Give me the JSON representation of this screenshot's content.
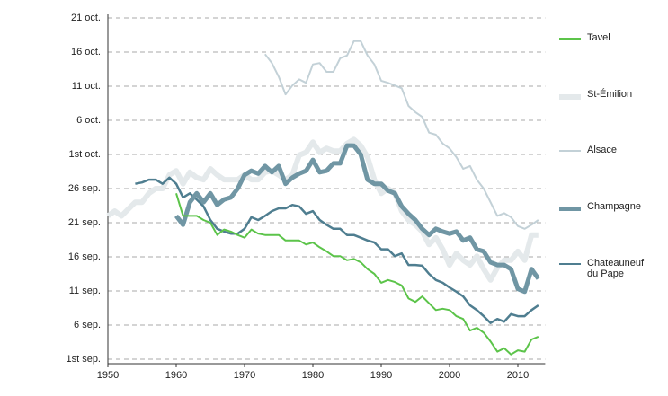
{
  "chart_data": {
    "type": "line",
    "x": [
      1950,
      1951,
      1952,
      1953,
      1954,
      1955,
      1956,
      1957,
      1958,
      1959,
      1960,
      1961,
      1962,
      1963,
      1964,
      1965,
      1966,
      1967,
      1968,
      1969,
      1970,
      1971,
      1972,
      1973,
      1974,
      1975,
      1976,
      1977,
      1978,
      1979,
      1980,
      1981,
      1982,
      1983,
      1984,
      1985,
      1986,
      1987,
      1988,
      1989,
      1990,
      1991,
      1992,
      1993,
      1994,
      1995,
      1996,
      1997,
      1998,
      1999,
      2000,
      2001,
      2002,
      2003,
      2004,
      2005,
      2006,
      2007,
      2008,
      2009,
      2010,
      2011,
      2012,
      2013
    ],
    "xlim": [
      1950,
      2014
    ],
    "xticks": [
      1950,
      1960,
      1970,
      1980,
      1990,
      2000,
      2010
    ],
    "ylim": [
      1,
      51
    ],
    "yticks": [
      {
        "value": 51,
        "label": "21 oct."
      },
      {
        "value": 46,
        "label": "16 oct."
      },
      {
        "value": 41,
        "label": "11 oct."
      },
      {
        "value": 36,
        "label": "6 oct."
      },
      {
        "value": 31,
        "label": "1st oct."
      },
      {
        "value": 26,
        "label": "26 sep."
      },
      {
        "value": 21,
        "label": "21 sep."
      },
      {
        "value": 16,
        "label": "16 sep."
      },
      {
        "value": 11,
        "label": "11 sep."
      },
      {
        "value": 6,
        "label": "6 sep."
      },
      {
        "value": 1,
        "label": "1st sep."
      }
    ],
    "grid": true,
    "series": [
      {
        "name": "St-Émilion",
        "color": "#e4e9eb",
        "values": [
          22,
          22.7,
          22,
          23,
          24,
          24,
          25.3,
          26,
          26,
          28,
          28.6,
          26.7,
          28.4,
          27.6,
          27.3,
          28.9,
          28,
          27.3,
          27.3,
          27.3,
          28,
          27.3,
          27.3,
          28.4,
          28.6,
          28,
          27.3,
          28,
          30.9,
          31.3,
          32.8,
          31.3,
          31.9,
          31.5,
          31.5,
          32.6,
          33.2,
          32.3,
          30.6,
          27.3,
          25.3,
          26,
          25.3,
          22.7,
          21.4,
          20.7,
          19.7,
          17.8,
          18.8,
          17.1,
          14.8,
          16.5,
          15.5,
          14.8,
          16.1,
          14.2,
          12.6,
          14.4,
          15.5,
          15.5,
          16.8,
          15.5,
          19.2,
          19.2
        ]
      },
      {
        "name": "Alsace",
        "color": "#c3d1d7",
        "values": [
          null,
          null,
          null,
          null,
          null,
          null,
          null,
          null,
          null,
          null,
          null,
          null,
          null,
          null,
          null,
          null,
          null,
          null,
          null,
          null,
          null,
          null,
          null,
          45.7,
          44.4,
          42.4,
          39.8,
          41.1,
          42,
          41.5,
          44.2,
          44.4,
          43.1,
          43.1,
          45.1,
          45.5,
          47.6,
          47.6,
          45.5,
          44.2,
          41.8,
          41.5,
          41.1,
          40.7,
          38.1,
          37.2,
          36.5,
          34.2,
          33.9,
          32.6,
          31.9,
          30.6,
          28.9,
          29.3,
          27.3,
          26,
          24,
          22,
          22.4,
          21.8,
          20.5,
          20.1,
          20.7,
          21.4
        ]
      },
      {
        "name": "Chateauneuf du Pape",
        "color": "#4f7e90",
        "values": [
          null,
          null,
          null,
          null,
          26.7,
          26.9,
          27.3,
          27.3,
          26.7,
          27.6,
          26.7,
          24.7,
          25.3,
          24.4,
          23.4,
          21.4,
          20.1,
          19.7,
          19.4,
          19.4,
          20.1,
          21.8,
          21.4,
          22,
          22.7,
          23.1,
          23.1,
          23.6,
          23.4,
          22.3,
          22.7,
          21.4,
          20.7,
          20.1,
          20.1,
          19.2,
          19.2,
          18.8,
          18.4,
          18.1,
          17.1,
          17.1,
          16.1,
          16.5,
          14.8,
          14.8,
          14.7,
          13.5,
          12.6,
          12.2,
          11.5,
          10.9,
          10.2,
          8.9,
          8.2,
          7.3,
          6.3,
          6.9,
          6.5,
          7.6,
          7.3,
          7.3,
          8.2,
          8.9
        ]
      },
      {
        "name": "Champagne",
        "color": "#7096a4",
        "values": [
          null,
          null,
          null,
          null,
          null,
          null,
          null,
          null,
          null,
          null,
          22,
          20.7,
          24,
          25.3,
          24,
          25.3,
          23.6,
          24.4,
          24.7,
          26,
          28,
          28.6,
          28.2,
          29.3,
          28.4,
          29.3,
          26.7,
          27.6,
          28.2,
          28.6,
          30.2,
          28.4,
          28.6,
          29.7,
          29.7,
          32.3,
          32.3,
          31,
          27.3,
          26.7,
          26.7,
          25.7,
          25.3,
          23.4,
          22.3,
          21.4,
          20.1,
          19.2,
          20.1,
          19.7,
          19.4,
          19.7,
          18.4,
          18.8,
          17.1,
          16.8,
          15.2,
          14.8,
          14.8,
          14.2,
          11.3,
          10.9,
          14.2,
          12.8
        ]
      },
      {
        "name": "Tavel",
        "color": "#5cc44a",
        "values": [
          null,
          null,
          null,
          null,
          null,
          null,
          null,
          null,
          null,
          null,
          25.3,
          22,
          22,
          22,
          21.4,
          21,
          19.2,
          20,
          19.7,
          19.2,
          18.8,
          20,
          19.4,
          19.2,
          19.2,
          19.2,
          18.4,
          18.4,
          18.4,
          17.8,
          18.1,
          17.4,
          16.8,
          16.1,
          16.1,
          15.5,
          15.7,
          15.2,
          14.2,
          13.5,
          12.2,
          12.6,
          12.3,
          11.8,
          9.9,
          9.4,
          10.2,
          9.2,
          8.2,
          8.4,
          8.2,
          7.3,
          6.9,
          5.2,
          5.6,
          4.9,
          3.6,
          2.1,
          2.6,
          1.7,
          2.3,
          2.1,
          3.9,
          4.3
        ]
      }
    ]
  }
}
